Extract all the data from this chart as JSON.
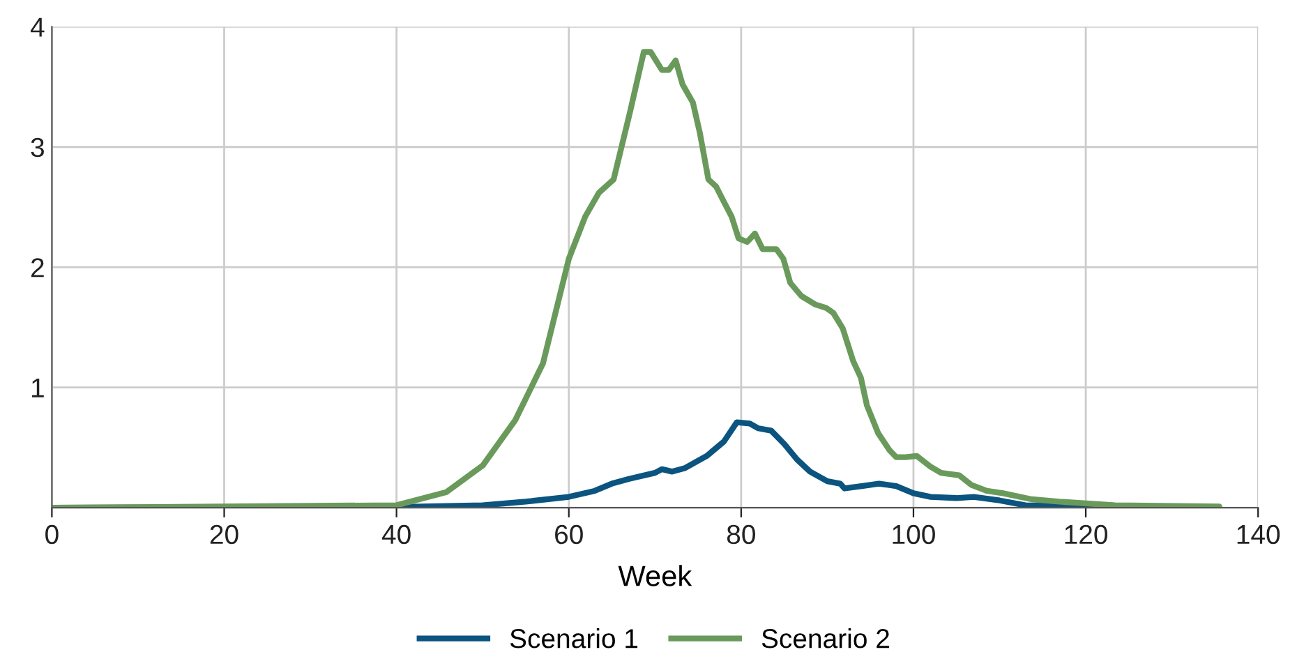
{
  "chart_data": {
    "type": "line",
    "xlabel": "Week",
    "xlim": [
      0,
      140
    ],
    "xticks": [
      0,
      20,
      40,
      60,
      80,
      100,
      120,
      140
    ],
    "ylim": [
      0,
      4
    ],
    "yticks": [
      {
        "value": 0,
        "label": null
      },
      1,
      2,
      3,
      4
    ],
    "grid": true,
    "legend": "bottom",
    "line_style": "solid",
    "marker": "none",
    "series": [
      {
        "name": "Scenario 1",
        "color": "#0b5480",
        "x": [
          0,
          40,
          50,
          55,
          60,
          63,
          65,
          67,
          70,
          70.8,
          72,
          73.5,
          76,
          78,
          79.5,
          81,
          82,
          83.5,
          85,
          86.5,
          88,
          90,
          91.5,
          92,
          94,
          96,
          98,
          100,
          102,
          105,
          107,
          110,
          113,
          120,
          135.5
        ],
        "values": [
          0,
          0.005,
          0.02,
          0.05,
          0.09,
          0.14,
          0.2,
          0.24,
          0.29,
          0.32,
          0.3,
          0.33,
          0.43,
          0.55,
          0.71,
          0.7,
          0.66,
          0.64,
          0.53,
          0.4,
          0.3,
          0.22,
          0.2,
          0.16,
          0.18,
          0.2,
          0.18,
          0.12,
          0.09,
          0.08,
          0.09,
          0.06,
          0.02,
          0.01,
          0
        ]
      },
      {
        "name": "Scenario 2",
        "color": "#6a9a5b",
        "x": [
          0,
          40,
          45.8,
          50,
          53.8,
          57,
          60,
          61.9,
          63.5,
          65.2,
          67.1,
          68.7,
          69.5,
          70.8,
          71.6,
          72.4,
          73.2,
          74.4,
          75.2,
          76.2,
          77.1,
          78.1,
          78.9,
          79.7,
          80.7,
          81.6,
          82.5,
          84.1,
          84.9,
          85.7,
          87,
          88.6,
          89.9,
          90.7,
          91.8,
          93,
          93.9,
          94.6,
          95.9,
          97.2,
          98,
          99.1,
          100.4,
          102,
          103.2,
          105.3,
          106.7,
          108.5,
          110.4,
          113.7,
          116.9,
          123.4,
          135.5
        ],
        "values": [
          0,
          0.02,
          0.13,
          0.35,
          0.73,
          1.2,
          2.07,
          2.42,
          2.62,
          2.73,
          3.29,
          3.79,
          3.79,
          3.64,
          3.64,
          3.72,
          3.52,
          3.37,
          3.12,
          2.73,
          2.67,
          2.53,
          2.42,
          2.24,
          2.21,
          2.28,
          2.15,
          2.15,
          2.07,
          1.87,
          1.76,
          1.69,
          1.66,
          1.62,
          1.49,
          1.22,
          1.08,
          0.85,
          0.62,
          0.48,
          0.42,
          0.42,
          0.43,
          0.34,
          0.29,
          0.27,
          0.19,
          0.14,
          0.12,
          0.07,
          0.05,
          0.02,
          0.01
        ]
      }
    ]
  }
}
